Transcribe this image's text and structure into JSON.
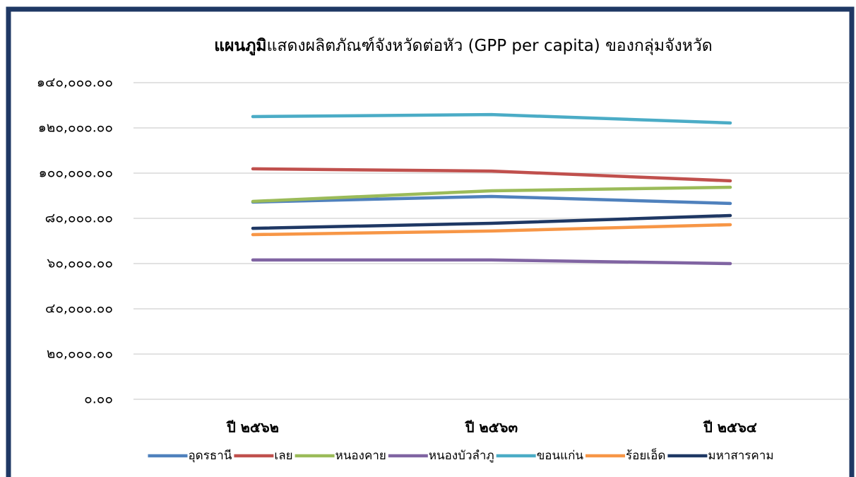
{
  "chart_data": {
    "type": "line",
    "title": [
      "แผนภูมิ",
      "แสดงผลิตภัณฑ์จังหวัดต่อหัว (GPP per capita) ของกลุ่มจังหวัด"
    ],
    "categories": [
      "ปี ๒๕๖๒",
      "ปี ๒๕๖๓",
      "ปี ๒๕๖๔"
    ],
    "series": [
      {
        "name": "อุดรธานี",
        "color": "#4f81bd",
        "values": [
          87200,
          89700,
          86600
        ]
      },
      {
        "name": "เลย",
        "color": "#c0504d",
        "values": [
          101900,
          100900,
          96600
        ]
      },
      {
        "name": "หนองคาย",
        "color": "#9bbb59",
        "values": [
          87500,
          92200,
          93750
        ]
      },
      {
        "name": "หนองบัวลำภู",
        "color": "#8064a2",
        "values": [
          61600,
          61600,
          60000
        ]
      },
      {
        "name": "ขอนแก่น",
        "color": "#4bacc6",
        "values": [
          125000,
          125900,
          122200
        ]
      },
      {
        "name": "ร้อยเอ็ด",
        "color": "#f79646",
        "values": [
          72800,
          74400,
          77200
        ]
      },
      {
        "name": "มหาสารคาม",
        "color": "#1f3864",
        "values": [
          75600,
          77800,
          81250
        ]
      }
    ],
    "ylim": [
      0,
      140000
    ],
    "yticks": [
      {
        "value": 0,
        "label": "๐.๐๐"
      },
      {
        "value": 20000,
        "label": "๒๐,๐๐๐.๐๐"
      },
      {
        "value": 40000,
        "label": "๔๐,๐๐๐.๐๐"
      },
      {
        "value": 60000,
        "label": "๖๐,๐๐๐.๐๐"
      },
      {
        "value": 80000,
        "label": "๘๐,๐๐๐.๐๐"
      },
      {
        "value": 100000,
        "label": "๑๐๐,๐๐๐.๐๐"
      },
      {
        "value": 120000,
        "label": "๑๒๐,๐๐๐.๐๐"
      },
      {
        "value": 140000,
        "label": "๑๔๐,๐๐๐.๐๐"
      }
    ],
    "grid": true,
    "legend": "bottom"
  }
}
